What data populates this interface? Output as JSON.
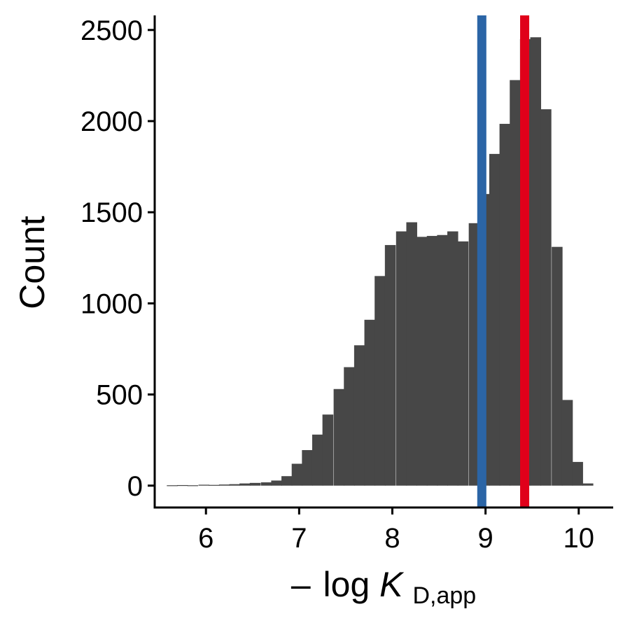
{
  "chart_data": {
    "type": "bar",
    "subtype": "histogram",
    "title": "",
    "xlabel": {
      "prefix": "–",
      "main": "log ",
      "italic": "K",
      "subscript": "D,app"
    },
    "ylabel": "Count",
    "xlim": [
      5.45,
      10.37
    ],
    "ylim": [
      -120,
      2580
    ],
    "xticks": [
      6,
      7,
      8,
      9,
      10
    ],
    "yticks": [
      0,
      500,
      1000,
      1500,
      2000,
      2500
    ],
    "grid": false,
    "legend": "none",
    "bin_width": 0.112,
    "bin_starts": [
      5.58,
      5.69,
      5.8,
      5.92,
      6.03,
      6.14,
      6.25,
      6.36,
      6.47,
      6.59,
      6.7,
      6.81,
      6.92,
      7.03,
      7.14,
      7.25,
      7.37,
      7.48,
      7.59,
      7.7,
      7.81,
      7.92,
      8.04,
      8.15,
      8.26,
      8.37,
      8.48,
      8.59,
      8.7,
      8.82,
      8.93,
      9.04,
      9.15,
      9.26,
      9.37,
      9.48,
      9.59,
      9.71,
      9.82,
      9.93,
      10.04
    ],
    "values": [
      2,
      3,
      2,
      5,
      4,
      6,
      8,
      12,
      15,
      18,
      28,
      52,
      120,
      195,
      280,
      390,
      530,
      650,
      770,
      910,
      1150,
      1320,
      1395,
      1445,
      1365,
      1370,
      1375,
      1395,
      1340,
      1440,
      1600,
      1820,
      1985,
      2225,
      2450,
      2460,
      2065,
      1310,
      470,
      130,
      12
    ],
    "bar_color": "#474747",
    "reference_lines": [
      {
        "x": 8.96,
        "color": "#2b65a6"
      },
      {
        "x": 9.42,
        "color": "#e0001a"
      }
    ]
  }
}
